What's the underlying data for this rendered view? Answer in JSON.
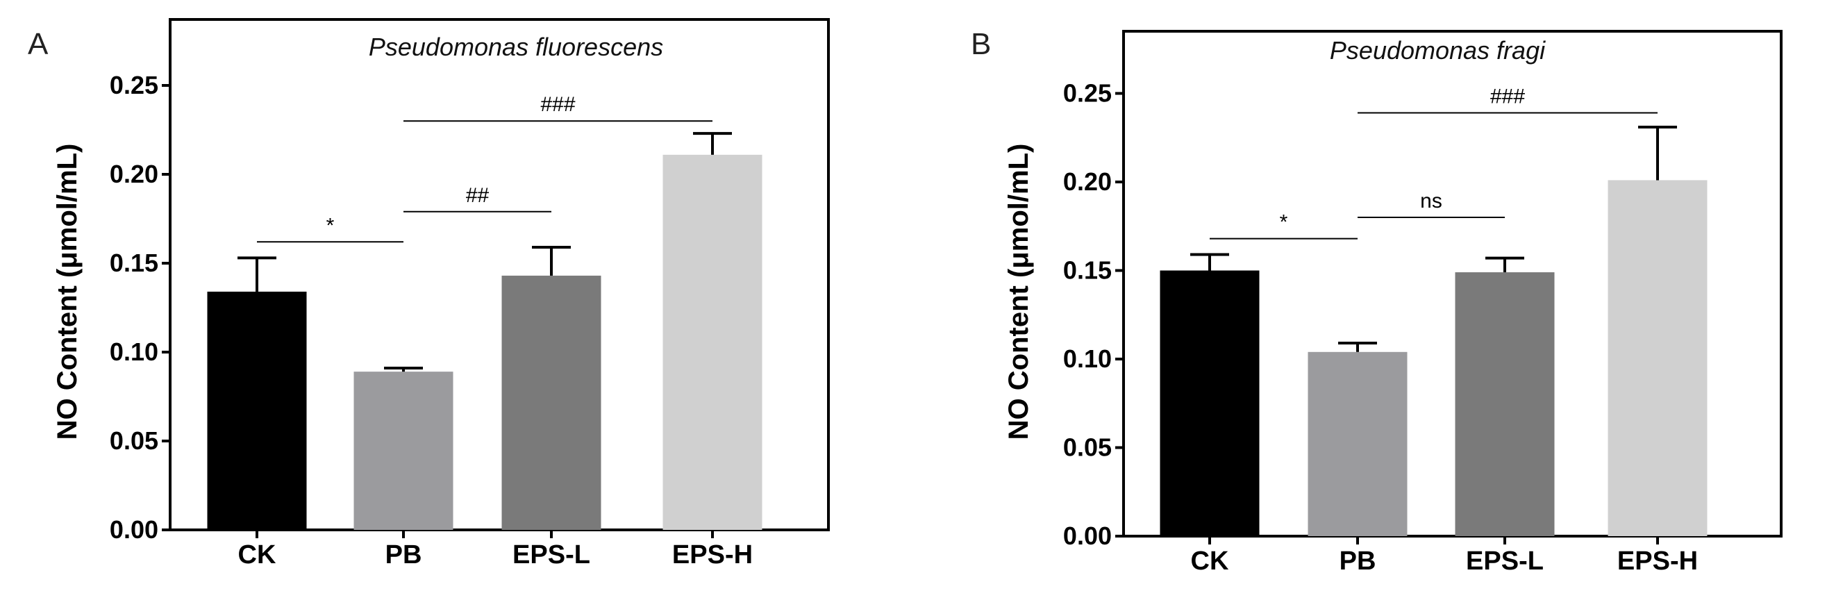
{
  "chart_data": [
    {
      "type": "bar",
      "panel_label": "A",
      "title": "Pseudomonas fluorescens",
      "ylabel": "NO Content (μmol/mL)",
      "xlabel": "",
      "categories": [
        "CK",
        "PB",
        "EPS-L",
        "EPS-H"
      ],
      "values": [
        0.134,
        0.089,
        0.143,
        0.211
      ],
      "errors": [
        0.019,
        0.002,
        0.016,
        0.012
      ],
      "colors": [
        "#000000",
        "#9b9b9e",
        "#7a7a7a",
        "#d0d0d0"
      ],
      "ylim": [
        0,
        0.28
      ],
      "yticks": [
        0.0,
        0.05,
        0.1,
        0.15,
        0.2,
        0.25
      ],
      "ytick_labels": [
        "0.00",
        "0.05",
        "0.10",
        "0.15",
        "0.20",
        "0.25"
      ],
      "grid": false,
      "significance": [
        {
          "from": 0,
          "to": 1,
          "label": "*",
          "y": 0.162
        },
        {
          "from": 1,
          "to": 2,
          "label": "##",
          "y": 0.179
        },
        {
          "from": 1,
          "to": 3,
          "label": "###",
          "y": 0.23
        }
      ]
    },
    {
      "type": "bar",
      "panel_label": "B",
      "title": "Pseudomonas fragi",
      "ylabel": "NO Content (μmol/mL)",
      "xlabel": "",
      "categories": [
        "CK",
        "PB",
        "EPS-L",
        "EPS-H"
      ],
      "values": [
        0.15,
        0.104,
        0.149,
        0.201
      ],
      "errors": [
        0.009,
        0.005,
        0.008,
        0.03
      ],
      "colors": [
        "#000000",
        "#9b9b9e",
        "#7a7a7a",
        "#d0d0d0"
      ],
      "ylim": [
        0,
        0.28
      ],
      "yticks": [
        0.0,
        0.05,
        0.1,
        0.15,
        0.2,
        0.25
      ],
      "ytick_labels": [
        "0.00",
        "0.05",
        "0.10",
        "0.15",
        "0.20",
        "0.25"
      ],
      "grid": false,
      "significance": [
        {
          "from": 0,
          "to": 1,
          "label": "*",
          "y": 0.168
        },
        {
          "from": 1,
          "to": 2,
          "label": "ns",
          "y": 0.18
        },
        {
          "from": 1,
          "to": 3,
          "label": "###",
          "y": 0.239
        }
      ]
    }
  ]
}
